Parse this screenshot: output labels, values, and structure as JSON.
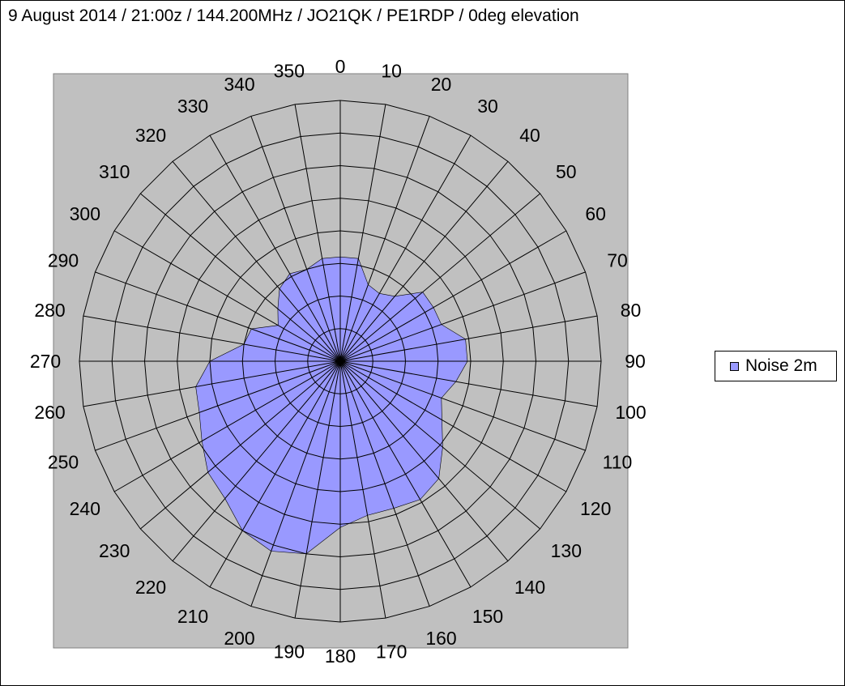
{
  "title": "9 August 2014 / 21:00z / 144.200MHz / JO21QK / PE1RDP / 0deg elevation",
  "colors": {
    "plot_background": "#c0c0c0",
    "series_fill": "#9999ff",
    "grid": "#000000"
  },
  "legend": {
    "position": "right"
  },
  "chart_data": {
    "type": "radar",
    "title": "9 August 2014 / 21:00z / 144.200MHz / JO21QK / PE1RDP / 0deg elevation",
    "categories": [
      "0",
      "10",
      "20",
      "30",
      "40",
      "50",
      "60",
      "70",
      "80",
      "90",
      "100",
      "110",
      "120",
      "130",
      "140",
      "150",
      "160",
      "170",
      "180",
      "190",
      "200",
      "210",
      "220",
      "230",
      "240",
      "250",
      "260",
      "270",
      "280",
      "290",
      "300",
      "310",
      "320",
      "330",
      "340",
      "350"
    ],
    "radial_max": 8,
    "radial_rings": 8,
    "grid": true,
    "series": [
      {
        "name": "Noise 2m",
        "values": [
          3.2,
          3.2,
          2.5,
          2.4,
          2.6,
          3.3,
          3.3,
          3.3,
          3.9,
          3.9,
          3.6,
          3.3,
          3.6,
          4.1,
          4.7,
          4.9,
          4.8,
          4.8,
          5.1,
          6.0,
          6.2,
          6.0,
          5.5,
          5.3,
          4.9,
          4.6,
          4.5,
          4.0,
          3.0,
          2.9,
          2.2,
          2.5,
          2.9,
          3.1,
          3.0,
          3.2
        ]
      }
    ]
  }
}
